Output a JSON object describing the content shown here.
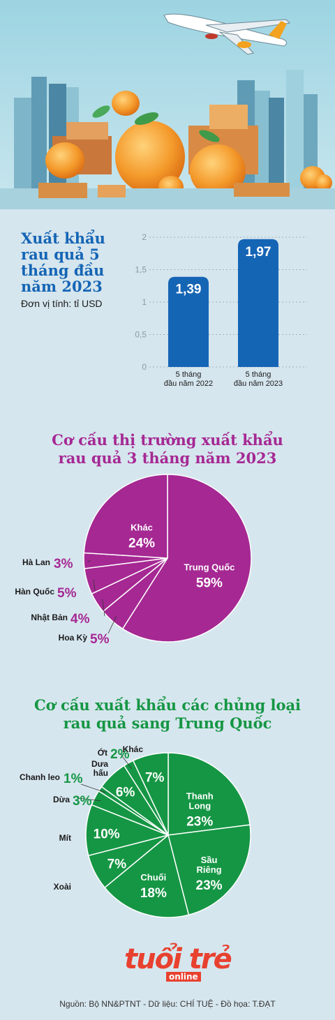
{
  "header": {
    "illustration": "airplane-over-city-with-oranges"
  },
  "bar_section": {
    "title": "Xuất khẩu rau quả 5 tháng đầu năm 2023",
    "unit": "Đơn vị tính: tỉ USD"
  },
  "market_section": {
    "title_line1": "Cơ cấu thị trường xuất khẩu",
    "title_line2": "rau quả 3 tháng năm 2023"
  },
  "types_section": {
    "title_line1": "Cơ cấu xuất khẩu các chủng loại",
    "title_line2": "rau quả sang Trung Quốc"
  },
  "logo": {
    "main": "tuổi trẻ",
    "sub": "online"
  },
  "footer": {
    "text": "Nguồn: Bộ NN&PTNT - Dữ liệu: CHÍ TUỆ - Đồ họa: T.ĐẠT"
  },
  "colors": {
    "bar": "#1565b5",
    "market_pie": "#a52893",
    "types_pie": "#159644",
    "background": "#d6e6ee"
  },
  "chart_data": [
    {
      "type": "bar",
      "title": "Xuất khẩu rau quả 5 tháng đầu năm 2023",
      "categories": [
        [
          "5 tháng",
          "đầu năm 2022"
        ],
        [
          "5 tháng",
          "đầu năm 2023"
        ]
      ],
      "values": [
        1.39,
        1.97
      ],
      "value_labels": [
        "1,39",
        "1,97"
      ],
      "ylim": [
        0,
        2
      ],
      "yticks": [
        0,
        0.5,
        1,
        1.5,
        2
      ],
      "ytick_labels": [
        "0",
        "0,5",
        "1",
        "1,5",
        "2"
      ],
      "grid": true
    },
    {
      "type": "pie",
      "title": "Cơ cấu thị trường xuất khẩu rau quả 3 tháng năm 2023",
      "slices": [
        {
          "label": "Trung Quốc",
          "value": 59
        },
        {
          "label": "Hoa Kỳ",
          "value": 5
        },
        {
          "label": "Nhật Bản",
          "value": 4
        },
        {
          "label": "Hàn Quốc",
          "value": 5
        },
        {
          "label": "Hà Lan",
          "value": 3
        },
        {
          "label": "Khác",
          "value": 24
        }
      ]
    },
    {
      "type": "pie",
      "title": "Cơ cấu xuất khẩu các chủng loại rau quả sang Trung Quốc",
      "slices": [
        {
          "label": "Thanh Long",
          "value": 23
        },
        {
          "label": "Sầu Riêng",
          "value": 23
        },
        {
          "label": "Chuối",
          "value": 18
        },
        {
          "label": "Xoài",
          "value": 7
        },
        {
          "label": "Mít",
          "value": 10
        },
        {
          "label": "Dừa",
          "value": 3
        },
        {
          "label": "Chanh leo",
          "value": 1
        },
        {
          "label": "Dưa hấu",
          "value": 6
        },
        {
          "label": "Ớt",
          "value": 2
        },
        {
          "label": "Khác",
          "value": 7
        }
      ]
    }
  ]
}
